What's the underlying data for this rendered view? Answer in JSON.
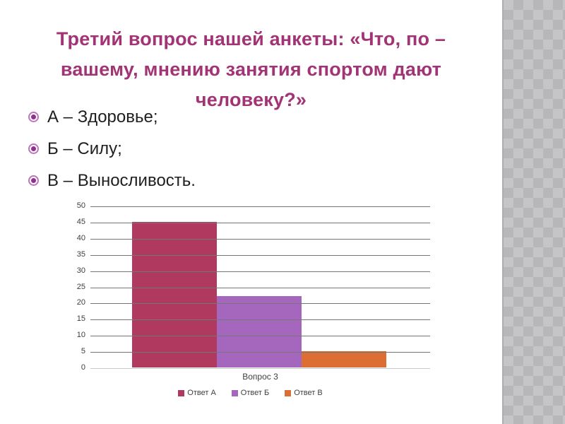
{
  "slide": {
    "title_lines": [
      "Третий вопрос нашей анкеты: «Что, по –",
      "вашему, мнению занятия спортом дают",
      "человеку?»"
    ],
    "title_color": "#a23476",
    "bullets": [
      "А – Здоровье;",
      "Б – Силу;",
      "В – Выносливость."
    ],
    "bullet_ring_color": "#bd77bd",
    "bullet_dot_color": "#93308f"
  },
  "chart_data": {
    "type": "bar",
    "categories": [
      "Вопрос 3"
    ],
    "series": [
      {
        "name": "Ответ А",
        "values": [
          45
        ],
        "color": "#b03a5f"
      },
      {
        "name": "Ответ Б",
        "values": [
          22
        ],
        "color": "#a566bd"
      },
      {
        "name": "Ответ В",
        "values": [
          5
        ],
        "color": "#dc6d33"
      }
    ],
    "title": "",
    "xlabel": "",
    "ylabel": "",
    "ylim": [
      0,
      50
    ],
    "ytick_step": 5,
    "grid": true,
    "legend_position": "bottom"
  },
  "colors": {
    "sidebar_base": "#c5c5c7",
    "sidebar_diamond": "#b7b7b9",
    "gridline": "#757575",
    "axis_text": "#3d3d3d"
  }
}
